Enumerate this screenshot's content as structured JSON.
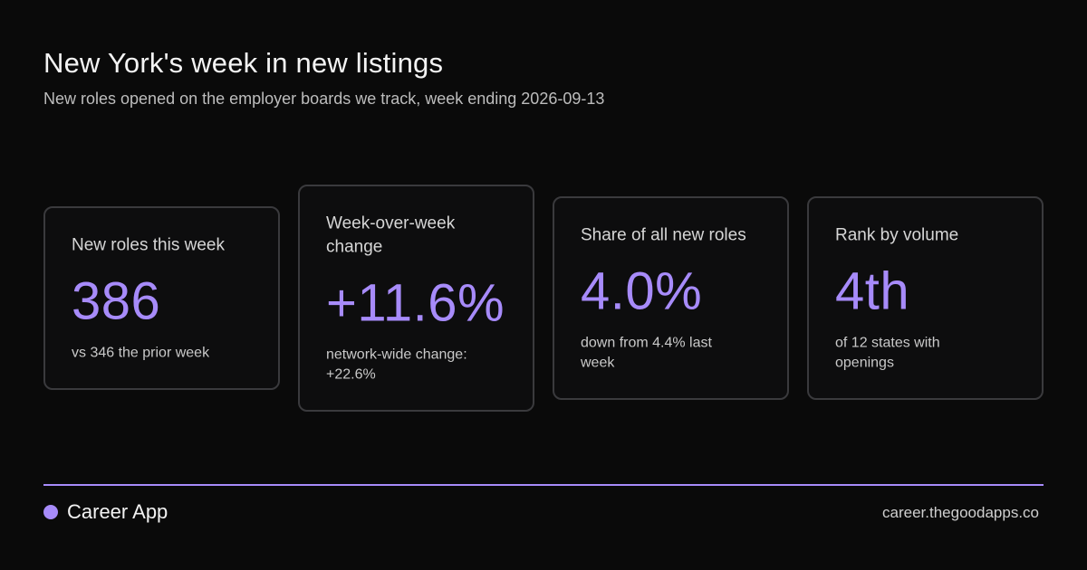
{
  "header": {
    "title": "New York's week in new listings",
    "subtitle": "New roles opened on the employer boards we track, week ending 2026-09-13"
  },
  "cards": [
    {
      "label": "New roles this week",
      "value": "386",
      "note": "vs 346 the prior week"
    },
    {
      "label": "Week-over-week change",
      "value": "+11.6%",
      "note": "network-wide change: +22.6%"
    },
    {
      "label": "Share of all new roles",
      "value": "4.0%",
      "note": "down from 4.4% last week"
    },
    {
      "label": "Rank by volume",
      "value": "4th",
      "note": "of 12 states with openings"
    }
  ],
  "footer": {
    "brand": "Career App",
    "url": "career.thegoodapps.co"
  },
  "colors": {
    "background": "#0a0a0a",
    "accent": "#a78bfa",
    "card_border": "#3a3a3d"
  }
}
